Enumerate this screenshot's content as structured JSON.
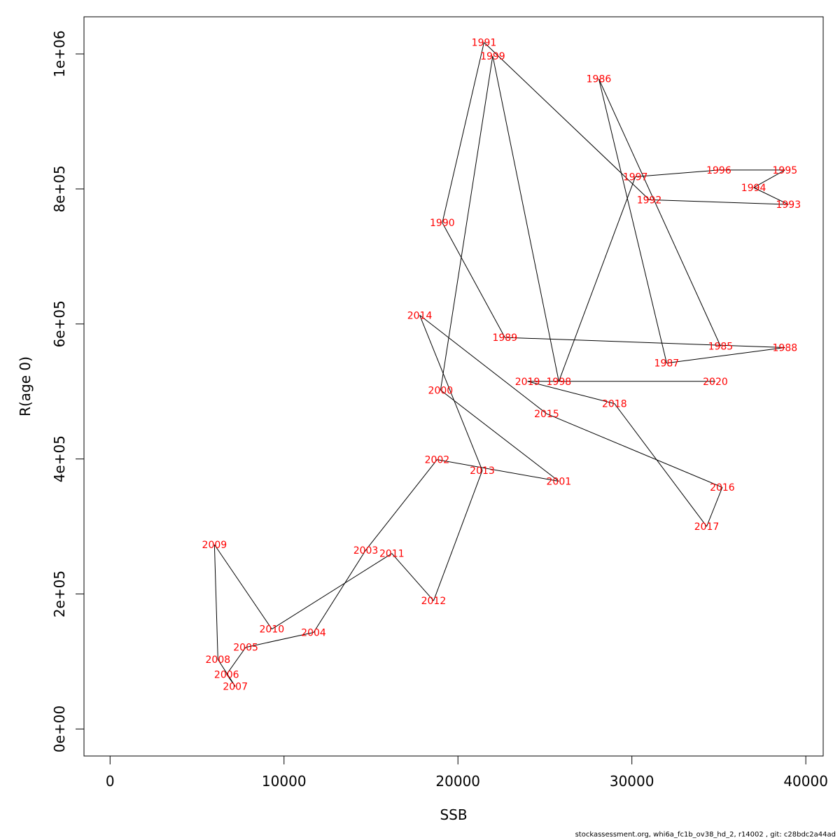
{
  "chart_data": {
    "type": "line",
    "xlabel": "SSB",
    "ylabel": "R(age 0)",
    "xlim": [
      -1500,
      41000
    ],
    "ylim": [
      -40000,
      1055000
    ],
    "x_ticks": [
      0,
      10000,
      20000,
      30000,
      40000
    ],
    "x_tick_labels": [
      "0",
      "10000",
      "20000",
      "30000",
      "40000"
    ],
    "y_ticks": [
      0,
      200000,
      400000,
      600000,
      800000,
      1000000
    ],
    "y_tick_labels": [
      "0e+00",
      "2e+05",
      "4e+05",
      "6e+05",
      "8e+05",
      "1e+06"
    ],
    "grid": false,
    "points": [
      {
        "label": "1985",
        "x": 35100,
        "y": 567000
      },
      {
        "label": "1986",
        "x": 28100,
        "y": 963000
      },
      {
        "label": "1987",
        "x": 32000,
        "y": 542000
      },
      {
        "label": "1988",
        "x": 38800,
        "y": 565000
      },
      {
        "label": "1989",
        "x": 22700,
        "y": 580000
      },
      {
        "label": "1990",
        "x": 19100,
        "y": 750000
      },
      {
        "label": "1991",
        "x": 21500,
        "y": 1017000
      },
      {
        "label": "1992",
        "x": 31000,
        "y": 784000
      },
      {
        "label": "1993",
        "x": 39000,
        "y": 777000
      },
      {
        "label": "1994",
        "x": 37000,
        "y": 802000
      },
      {
        "label": "1995",
        "x": 38800,
        "y": 828000
      },
      {
        "label": "1996",
        "x": 35000,
        "y": 828000
      },
      {
        "label": "1997",
        "x": 30200,
        "y": 818000
      },
      {
        "label": "1998",
        "x": 25800,
        "y": 515000
      },
      {
        "label": "1999",
        "x": 22000,
        "y": 997000
      },
      {
        "label": "2000",
        "x": 19000,
        "y": 502000
      },
      {
        "label": "2001",
        "x": 25800,
        "y": 367000
      },
      {
        "label": "2002",
        "x": 18800,
        "y": 399000
      },
      {
        "label": "2003",
        "x": 14700,
        "y": 265000
      },
      {
        "label": "2004",
        "x": 11700,
        "y": 143000
      },
      {
        "label": "2005",
        "x": 7800,
        "y": 121000
      },
      {
        "label": "2006",
        "x": 6700,
        "y": 81000
      },
      {
        "label": "2007",
        "x": 7200,
        "y": 63000
      },
      {
        "label": "2008",
        "x": 6200,
        "y": 103000
      },
      {
        "label": "2009",
        "x": 6000,
        "y": 273000
      },
      {
        "label": "2010",
        "x": 9300,
        "y": 148000
      },
      {
        "label": "2011",
        "x": 16200,
        "y": 260000
      },
      {
        "label": "2012",
        "x": 18600,
        "y": 190000
      },
      {
        "label": "2013",
        "x": 21400,
        "y": 383000
      },
      {
        "label": "2014",
        "x": 17800,
        "y": 613000
      },
      {
        "label": "2015",
        "x": 25100,
        "y": 467000
      },
      {
        "label": "2016",
        "x": 35200,
        "y": 358000
      },
      {
        "label": "2017",
        "x": 34300,
        "y": 300000
      },
      {
        "label": "2018",
        "x": 29000,
        "y": 482000
      },
      {
        "label": "2019",
        "x": 24000,
        "y": 515000
      },
      {
        "label": "2020",
        "x": 34800,
        "y": 515000
      }
    ],
    "point_color": "#ff0000",
    "line_color": "#000000"
  },
  "footer": "stockassessment.org, whi6a_fc1b_ov38_hd_2, r14002 , git: c28bdc2a44ad"
}
